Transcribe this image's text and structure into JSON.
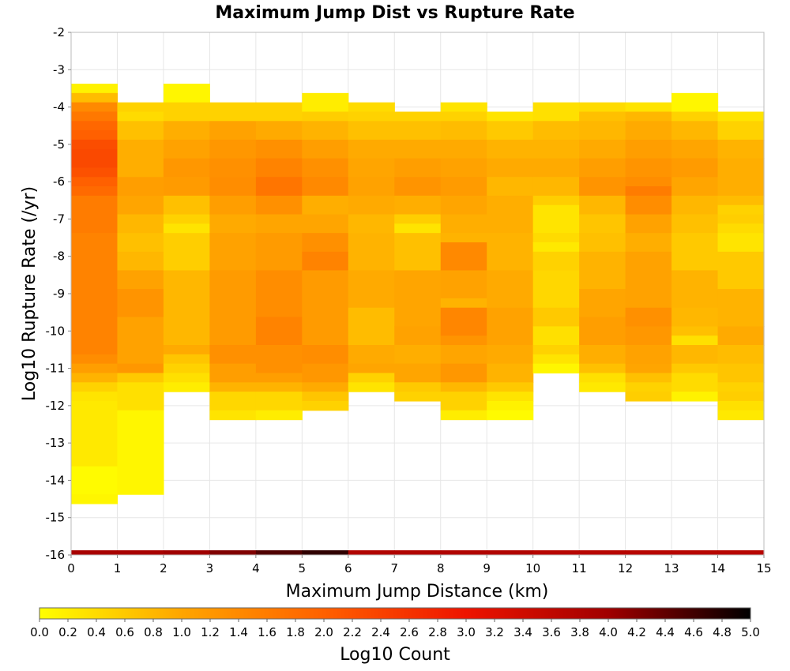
{
  "chart_data": {
    "type": "heatmap",
    "title": "Maximum Jump Dist vs Rupture Rate",
    "xlabel": "Maximum Jump Distance (km)",
    "ylabel": "Log10 Rupture Rate (/yr)",
    "xlim": [
      0,
      15
    ],
    "ylim": [
      -16,
      -2
    ],
    "x_ticks": [
      "0",
      "1",
      "2",
      "3",
      "4",
      "5",
      "6",
      "7",
      "8",
      "9",
      "10",
      "11",
      "12",
      "13",
      "14",
      "15"
    ],
    "y_ticks": [
      "-2",
      "-3",
      "-4",
      "-5",
      "-6",
      "-7",
      "-8",
      "-9",
      "-10",
      "-11",
      "-12",
      "-13",
      "-14",
      "-15",
      "-16"
    ],
    "x_bin_width": 1,
    "y_bin_height": 0.25,
    "grid": true,
    "colorbar": {
      "label": "Log10 Count",
      "range": [
        0,
        5
      ],
      "orientation": "horizontal",
      "placement": "bottom",
      "colors": [
        "#ffff00",
        "#ffa500",
        "#ff6000",
        "#ee1400",
        "#a00000",
        "#000000"
      ],
      "ticks": [
        "0.0",
        "0.2",
        "0.4",
        "0.6",
        "0.8",
        "1.0",
        "1.2",
        "1.4",
        "1.6",
        "1.8",
        "2.0",
        "2.2",
        "2.4",
        "2.6",
        "2.8",
        "3.0",
        "3.2",
        "3.4",
        "3.6",
        "3.8",
        "4.0",
        "4.2",
        "4.4",
        "4.6",
        "4.8",
        "5.0"
      ]
    },
    "columns": [
      {
        "x": 0.5,
        "ranges": [
          [
            -3.5,
            0.15
          ],
          [
            -3.75,
            0.75
          ],
          [
            -4.0,
            1.4
          ],
          [
            -4.25,
            1.65
          ],
          [
            -4.5,
            1.9
          ],
          [
            -4.75,
            2.0
          ],
          [
            -5.0,
            2.25
          ],
          [
            -5.25,
            2.3
          ],
          [
            -5.5,
            2.3
          ],
          [
            -5.75,
            2.2
          ],
          [
            -6.0,
            2.0
          ],
          [
            -6.25,
            1.85
          ],
          [
            -6.5,
            1.6
          ],
          [
            -7.5,
            1.5
          ],
          [
            -10.0,
            1.5
          ],
          [
            -10.75,
            1.35
          ],
          [
            -11.0,
            1.1
          ],
          [
            -11.25,
            0.85
          ],
          [
            -11.5,
            0.5
          ],
          [
            -11.75,
            0.3
          ],
          [
            -12.0,
            0.25
          ],
          [
            -13.75,
            0.05
          ],
          [
            -14.5,
            0.1
          ]
        ]
      },
      {
        "x": 1.5,
        "ranges": [
          [
            -4.0,
            0.5
          ],
          [
            -4.25,
            0.4
          ],
          [
            -4.5,
            0.7
          ],
          [
            -5.0,
            0.9
          ],
          [
            -6.0,
            1.1
          ],
          [
            -6.5,
            1.0
          ],
          [
            -7.0,
            0.8
          ],
          [
            -7.5,
            0.7
          ],
          [
            -8.0,
            0.8
          ],
          [
            -8.5,
            1.05
          ],
          [
            -9.0,
            1.25
          ],
          [
            -9.75,
            1.05
          ],
          [
            -10.5,
            1.05
          ],
          [
            -11.0,
            1.2
          ],
          [
            -11.25,
            0.6
          ],
          [
            -11.5,
            0.35
          ],
          [
            -12.25,
            0.1
          ],
          [
            -14.25,
            0.1
          ]
        ]
      },
      {
        "x": 2.5,
        "ranges": [
          [
            -3.5,
            0.1
          ],
          [
            -4.0,
            0.5
          ],
          [
            -4.5,
            0.9
          ],
          [
            -5.0,
            1.05
          ],
          [
            -5.5,
            1.2
          ],
          [
            -6.0,
            1.15
          ],
          [
            -6.5,
            0.7
          ],
          [
            -7.0,
            0.5
          ],
          [
            -7.25,
            0.3
          ],
          [
            -7.5,
            0.55
          ],
          [
            -8.5,
            0.8
          ],
          [
            -10.0,
            0.8
          ],
          [
            -10.5,
            0.95
          ],
          [
            -10.75,
            0.65
          ],
          [
            -11.0,
            0.5
          ],
          [
            -11.25,
            0.35
          ],
          [
            -11.5,
            0.2
          ]
        ]
      },
      {
        "x": 3.5,
        "ranges": [
          [
            -4.0,
            0.5
          ],
          [
            -4.5,
            1.05
          ],
          [
            -5.0,
            1.2
          ],
          [
            -5.5,
            1.3
          ],
          [
            -6.0,
            1.35
          ],
          [
            -6.5,
            1.1
          ],
          [
            -7.0,
            0.95
          ],
          [
            -7.5,
            1.05
          ],
          [
            -8.5,
            1.15
          ],
          [
            -10.5,
            1.3
          ],
          [
            -11.0,
            1.1
          ],
          [
            -11.5,
            0.85
          ],
          [
            -11.75,
            0.45
          ],
          [
            -12.25,
            0.3
          ]
        ]
      },
      {
        "x": 4.5,
        "ranges": [
          [
            -4.0,
            0.5
          ],
          [
            -4.5,
            0.95
          ],
          [
            -5.0,
            1.3
          ],
          [
            -5.5,
            1.5
          ],
          [
            -6.0,
            1.7
          ],
          [
            -6.5,
            1.3
          ],
          [
            -7.0,
            1.0
          ],
          [
            -7.5,
            1.15
          ],
          [
            -8.5,
            1.35
          ],
          [
            -9.75,
            1.5
          ],
          [
            -10.5,
            1.3
          ],
          [
            -11.25,
            1.1
          ],
          [
            -11.5,
            0.85
          ],
          [
            -11.75,
            0.45
          ],
          [
            -12.25,
            0.2
          ]
        ]
      },
      {
        "x": 5.5,
        "ranges": [
          [
            -3.75,
            0.2
          ],
          [
            -4.25,
            0.55
          ],
          [
            -4.5,
            0.85
          ],
          [
            -5.0,
            1.1
          ],
          [
            -5.5,
            1.3
          ],
          [
            -6.0,
            1.4
          ],
          [
            -6.5,
            0.9
          ],
          [
            -7.0,
            1.0
          ],
          [
            -7.5,
            1.3
          ],
          [
            -8.0,
            1.5
          ],
          [
            -8.5,
            1.15
          ],
          [
            -10.5,
            1.35
          ],
          [
            -11.0,
            1.2
          ],
          [
            -11.5,
            0.95
          ],
          [
            -11.75,
            0.65
          ],
          [
            -12.0,
            0.5
          ]
        ]
      },
      {
        "x": 6.5,
        "ranges": [
          [
            -4.0,
            0.4
          ],
          [
            -4.25,
            0.5
          ],
          [
            -4.5,
            0.7
          ],
          [
            -5.0,
            0.95
          ],
          [
            -5.5,
            1.0
          ],
          [
            -6.0,
            1.05
          ],
          [
            -6.5,
            0.95
          ],
          [
            -7.0,
            0.8
          ],
          [
            -7.5,
            0.85
          ],
          [
            -8.5,
            0.95
          ],
          [
            -9.5,
            0.75
          ],
          [
            -10.5,
            0.95
          ],
          [
            -11.0,
            1.0
          ],
          [
            -11.25,
            0.5
          ],
          [
            -11.5,
            0.3
          ]
        ]
      },
      {
        "x": 7.5,
        "ranges": [
          [
            -4.25,
            0.5
          ],
          [
            -4.5,
            0.7
          ],
          [
            -5.0,
            0.95
          ],
          [
            -5.5,
            1.1
          ],
          [
            -6.0,
            1.25
          ],
          [
            -6.5,
            0.9
          ],
          [
            -7.0,
            0.55
          ],
          [
            -7.25,
            0.3
          ],
          [
            -7.5,
            0.7
          ],
          [
            -8.5,
            1.0
          ],
          [
            -10.0,
            1.05
          ],
          [
            -10.5,
            0.9
          ],
          [
            -11.0,
            1.0
          ],
          [
            -11.5,
            0.6
          ],
          [
            -11.75,
            0.5
          ]
        ]
      },
      {
        "x": 8.5,
        "ranges": [
          [
            -4.0,
            0.3
          ],
          [
            -4.25,
            0.5
          ],
          [
            -4.5,
            0.75
          ],
          [
            -5.0,
            0.95
          ],
          [
            -5.5,
            1.05
          ],
          [
            -6.0,
            1.15
          ],
          [
            -6.5,
            1.0
          ],
          [
            -7.0,
            0.9
          ],
          [
            -7.5,
            0.85
          ],
          [
            -7.75,
            1.4
          ],
          [
            -8.5,
            1.05
          ],
          [
            -9.25,
            0.85
          ],
          [
            -9.5,
            1.45
          ],
          [
            -10.25,
            1.25
          ],
          [
            -10.5,
            1.0
          ],
          [
            -11.0,
            1.2
          ],
          [
            -11.5,
            0.8
          ],
          [
            -11.75,
            0.5
          ],
          [
            -12.25,
            0.2
          ]
        ]
      },
      {
        "x": 9.5,
        "ranges": [
          [
            -4.25,
            0.3
          ],
          [
            -4.5,
            0.6
          ],
          [
            -5.0,
            0.85
          ],
          [
            -5.5,
            0.95
          ],
          [
            -6.0,
            0.8
          ],
          [
            -6.5,
            0.9
          ],
          [
            -7.5,
            0.85
          ],
          [
            -8.5,
            0.95
          ],
          [
            -9.5,
            1.05
          ],
          [
            -10.5,
            0.95
          ],
          [
            -11.0,
            0.85
          ],
          [
            -11.5,
            0.6
          ],
          [
            -11.75,
            0.3
          ],
          [
            -12.0,
            0.15
          ],
          [
            -12.25,
            0.05
          ]
        ]
      },
      {
        "x": 10.5,
        "ranges": [
          [
            -4.0,
            0.35
          ],
          [
            -4.5,
            0.75
          ],
          [
            -5.0,
            0.85
          ],
          [
            -5.5,
            0.95
          ],
          [
            -6.0,
            0.8
          ],
          [
            -6.5,
            0.55
          ],
          [
            -6.75,
            0.3
          ],
          [
            -7.5,
            0.4
          ],
          [
            -7.75,
            0.25
          ],
          [
            -8.0,
            0.5
          ],
          [
            -8.5,
            0.45
          ],
          [
            -9.5,
            0.6
          ],
          [
            -10.0,
            0.35
          ],
          [
            -10.5,
            0.5
          ],
          [
            -10.75,
            0.3
          ],
          [
            -11.0,
            0.1
          ]
        ]
      },
      {
        "x": 11.5,
        "ranges": [
          [
            -4.0,
            0.4
          ],
          [
            -4.25,
            0.7
          ],
          [
            -4.5,
            0.8
          ],
          [
            -5.0,
            0.95
          ],
          [
            -5.5,
            1.1
          ],
          [
            -6.0,
            1.25
          ],
          [
            -6.5,
            0.8
          ],
          [
            -7.0,
            0.65
          ],
          [
            -7.5,
            0.7
          ],
          [
            -8.0,
            0.85
          ],
          [
            -9.0,
            1.0
          ],
          [
            -9.75,
            1.1
          ],
          [
            -10.5,
            0.9
          ],
          [
            -11.0,
            0.7
          ],
          [
            -11.25,
            0.35
          ],
          [
            -11.5,
            0.25
          ]
        ]
      },
      {
        "x": 12.5,
        "ranges": [
          [
            -4.0,
            0.3
          ],
          [
            -4.25,
            0.8
          ],
          [
            -4.5,
            0.95
          ],
          [
            -5.0,
            1.1
          ],
          [
            -5.5,
            1.25
          ],
          [
            -6.0,
            1.35
          ],
          [
            -6.25,
            1.6
          ],
          [
            -6.5,
            1.35
          ],
          [
            -7.0,
            1.05
          ],
          [
            -7.5,
            0.9
          ],
          [
            -8.0,
            1.05
          ],
          [
            -9.5,
            1.3
          ],
          [
            -10.0,
            1.2
          ],
          [
            -10.5,
            1.05
          ],
          [
            -11.0,
            1.0
          ],
          [
            -11.25,
            0.7
          ],
          [
            -11.5,
            0.5
          ],
          [
            -11.75,
            0.55
          ]
        ]
      },
      {
        "x": 13.5,
        "ranges": [
          [
            -3.75,
            0.1
          ],
          [
            -4.0,
            0.1
          ],
          [
            -4.25,
            0.5
          ],
          [
            -4.5,
            0.8
          ],
          [
            -5.0,
            1.0
          ],
          [
            -5.5,
            1.15
          ],
          [
            -6.0,
            1.0
          ],
          [
            -6.5,
            0.8
          ],
          [
            -7.0,
            0.7
          ],
          [
            -7.5,
            0.6
          ],
          [
            -8.5,
            0.85
          ],
          [
            -9.5,
            0.8
          ],
          [
            -10.0,
            0.7
          ],
          [
            -10.25,
            0.35
          ],
          [
            -10.5,
            0.8
          ],
          [
            -11.0,
            0.6
          ],
          [
            -11.25,
            0.4
          ],
          [
            -11.75,
            0.15
          ]
        ]
      },
      {
        "x": 14.5,
        "ranges": [
          [
            -4.25,
            0.3
          ],
          [
            -4.5,
            0.5
          ],
          [
            -5.0,
            0.85
          ],
          [
            -5.5,
            0.9
          ],
          [
            -6.5,
            0.75
          ],
          [
            -6.75,
            0.5
          ],
          [
            -7.0,
            0.55
          ],
          [
            -7.25,
            0.4
          ],
          [
            -7.5,
            0.3
          ],
          [
            -8.0,
            0.6
          ],
          [
            -9.0,
            0.85
          ],
          [
            -10.0,
            0.95
          ],
          [
            -10.5,
            0.75
          ],
          [
            -11.0,
            0.65
          ],
          [
            -11.5,
            0.5
          ],
          [
            -11.75,
            0.55
          ],
          [
            -12.0,
            0.35
          ],
          [
            -12.25,
            0.25
          ]
        ]
      }
    ],
    "bottom_band": {
      "y": -16,
      "values": [
        3.9,
        3.9,
        4.0,
        4.2,
        4.5,
        4.7,
        3.8,
        3.8,
        3.8,
        3.8,
        3.7,
        3.7,
        3.7,
        3.7,
        3.7
      ]
    }
  }
}
